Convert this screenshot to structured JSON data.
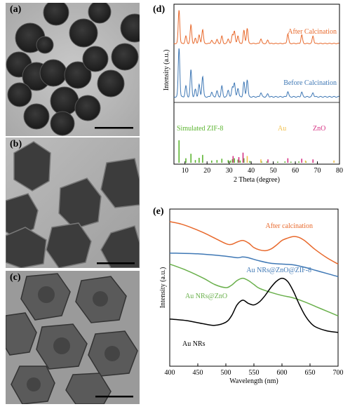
{
  "panels": {
    "a": {
      "label": "(a)"
    },
    "b": {
      "label": "(b)"
    },
    "c": {
      "label": "(c)"
    },
    "d": {
      "label": "(d)"
    },
    "e": {
      "label": "(e)"
    }
  },
  "colors": {
    "orange": "#e8692c",
    "blue": "#3f78b5",
    "green": "#6ab04c",
    "black": "#000000",
    "gold": "#f2c14e",
    "magenta": "#d63384",
    "limegreen": "#5cb531"
  },
  "chart_data": [
    {
      "type": "line",
      "panel": "(d)",
      "xlabel": "2 Theta (degree)",
      "ylabel": "Intensity (a.u.)",
      "xlim": [
        5,
        80
      ],
      "xticks": [
        10,
        20,
        30,
        40,
        50,
        60,
        70,
        80
      ],
      "series": [
        {
          "name": "After Calcination",
          "color": "#e8692c"
        },
        {
          "name": "Before Calcination",
          "color": "#3f78b5"
        }
      ],
      "legend": [
        "Simulated ZIF-8",
        "Au",
        "ZnO"
      ],
      "sticks": {
        "zif8": [
          [
            7.3,
            100
          ],
          [
            10.4,
            20
          ],
          [
            12.7,
            40
          ],
          [
            14.7,
            12
          ],
          [
            16.4,
            22
          ],
          [
            18.0,
            35
          ],
          [
            22.1,
            10
          ],
          [
            24.5,
            12
          ],
          [
            26.7,
            18
          ],
          [
            29.6,
            12
          ],
          [
            30.6,
            10
          ],
          [
            31.5,
            16
          ],
          [
            32.4,
            20
          ],
          [
            34.0,
            14
          ],
          [
            35.0,
            10
          ],
          [
            36.7,
            20
          ],
          [
            39.4,
            8
          ],
          [
            44.7,
            6
          ],
          [
            47.1,
            6
          ],
          [
            52.0,
            5
          ],
          [
            55.3,
            6
          ],
          [
            58.0,
            5
          ],
          [
            61.6,
            6
          ],
          [
            64.8,
            6
          ],
          [
            68.0,
            5
          ]
        ],
        "au": [
          [
            38.2,
            30
          ],
          [
            44.4,
            15
          ],
          [
            64.6,
            10
          ],
          [
            77.5,
            10
          ]
        ],
        "zno": [
          [
            31.8,
            30
          ],
          [
            34.4,
            25
          ],
          [
            36.3,
            45
          ],
          [
            47.6,
            15
          ],
          [
            56.6,
            20
          ],
          [
            62.9,
            18
          ],
          [
            68.0,
            15
          ]
        ]
      }
    },
    {
      "type": "line",
      "panel": "(e)",
      "xlabel": "Wavelength (nm)",
      "ylabel": "Intensity (a.u.)",
      "xlim": [
        400,
        700
      ],
      "xticks": [
        400,
        450,
        500,
        550,
        600,
        650,
        700
      ],
      "series": [
        {
          "name": "After calcination",
          "color": "#e8692c",
          "x": [
            400,
            420,
            440,
            460,
            480,
            500,
            510,
            520,
            530,
            540,
            550,
            560,
            570,
            580,
            590,
            600,
            610,
            620,
            630,
            640,
            650,
            660,
            680,
            700
          ],
          "y": [
            0.92,
            0.905,
            0.88,
            0.85,
            0.815,
            0.78,
            0.775,
            0.79,
            0.8,
            0.785,
            0.755,
            0.74,
            0.735,
            0.745,
            0.77,
            0.8,
            0.815,
            0.825,
            0.82,
            0.8,
            0.77,
            0.74,
            0.69,
            0.65
          ]
        },
        {
          "name": "Au NRs@ZnO@ZIF-8",
          "color": "#3f78b5",
          "x": [
            400,
            450,
            500,
            520,
            530,
            540,
            560,
            580,
            600,
            620,
            640,
            660,
            680,
            700
          ],
          "y": [
            0.72,
            0.715,
            0.7,
            0.69,
            0.695,
            0.69,
            0.67,
            0.655,
            0.65,
            0.645,
            0.63,
            0.61,
            0.59,
            0.57
          ]
        },
        {
          "name": "Au NRs@ZnO",
          "color": "#6ab04c",
          "x": [
            400,
            430,
            460,
            480,
            500,
            510,
            520,
            530,
            540,
            550,
            560,
            580,
            600,
            620,
            640,
            660,
            680,
            700
          ],
          "y": [
            0.65,
            0.61,
            0.56,
            0.52,
            0.5,
            0.515,
            0.545,
            0.56,
            0.545,
            0.52,
            0.495,
            0.47,
            0.45,
            0.435,
            0.41,
            0.38,
            0.35,
            0.32
          ]
        },
        {
          "name": "Au NRs",
          "color": "#000000",
          "x": [
            400,
            430,
            460,
            480,
            500,
            510,
            520,
            530,
            540,
            550,
            560,
            570,
            580,
            590,
            600,
            610,
            620,
            630,
            640,
            650,
            660,
            680,
            700
          ],
          "y": [
            0.3,
            0.29,
            0.27,
            0.26,
            0.28,
            0.32,
            0.39,
            0.42,
            0.4,
            0.39,
            0.41,
            0.45,
            0.5,
            0.54,
            0.56,
            0.54,
            0.48,
            0.4,
            0.33,
            0.28,
            0.25,
            0.225,
            0.215
          ]
        }
      ]
    }
  ]
}
